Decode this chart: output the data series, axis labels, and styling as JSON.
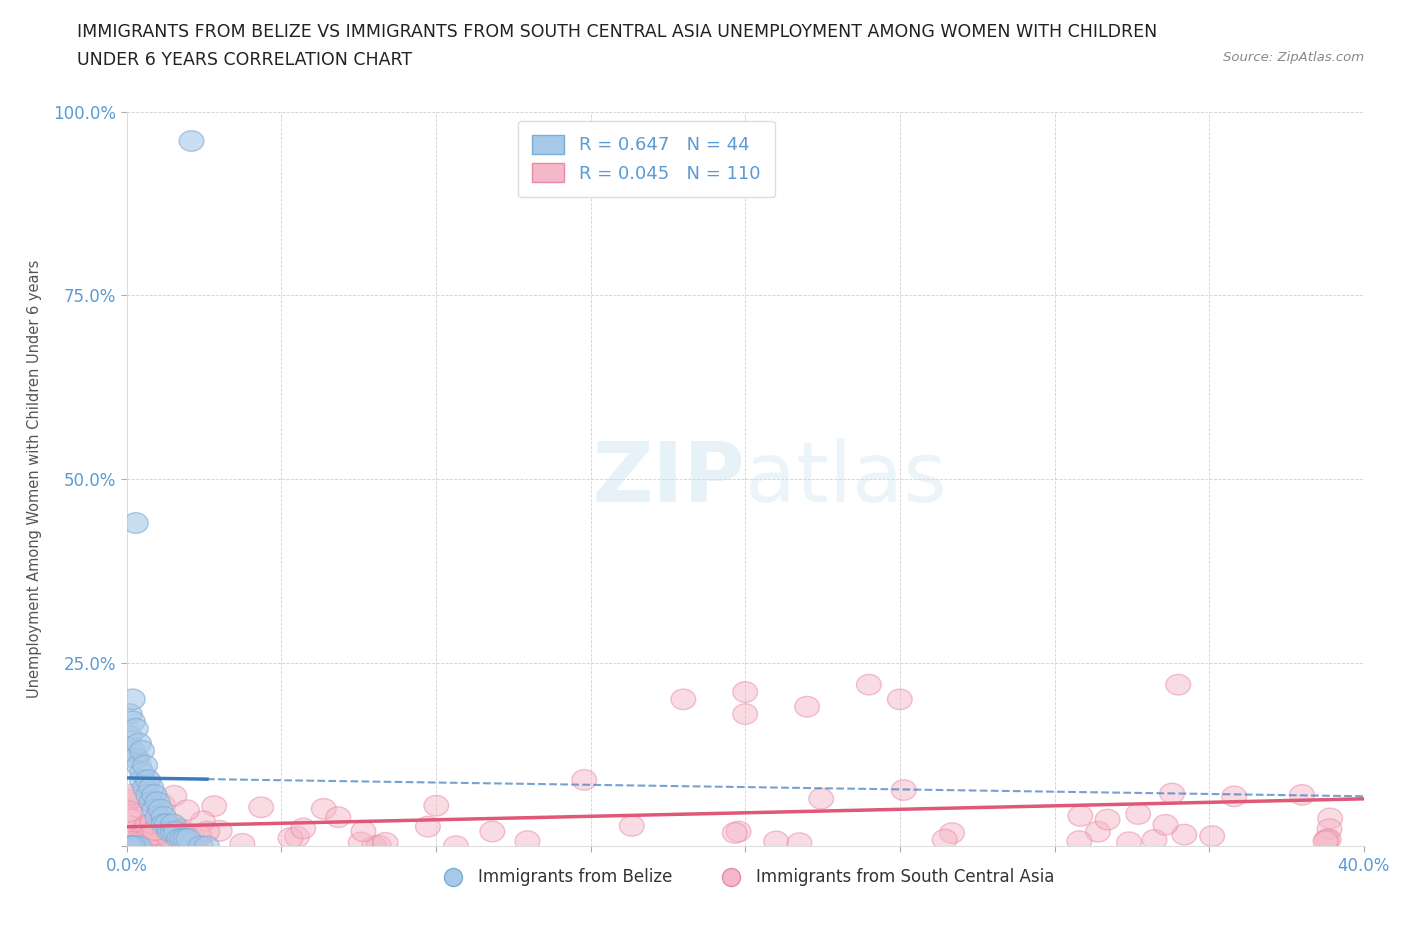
{
  "title_line1": "IMMIGRANTS FROM BELIZE VS IMMIGRANTS FROM SOUTH CENTRAL ASIA UNEMPLOYMENT AMONG WOMEN WITH CHILDREN",
  "title_line2": "UNDER 6 YEARS CORRELATION CHART",
  "source": "Source: ZipAtlas.com",
  "ylabel": "Unemployment Among Women with Children Under 6 years",
  "xlim": [
    0.0,
    0.4
  ],
  "ylim": [
    0.0,
    1.0
  ],
  "belize_R": 0.647,
  "belize_N": 44,
  "sca_R": 0.045,
  "sca_N": 110,
  "belize_color": "#a8c8e8",
  "belize_edge_color": "#7aadd4",
  "belize_line_color": "#3a7abf",
  "sca_color": "#f5b8c8",
  "sca_edge_color": "#e888a8",
  "sca_line_color": "#e05878",
  "legend_label_belize": "Immigrants from Belize",
  "legend_label_sca": "Immigrants from South Central Asia",
  "watermark_zip": "ZIP",
  "watermark_atlas": "atlas",
  "background_color": "#ffffff",
  "grid_color": "#cccccc",
  "title_color": "#222222",
  "axis_color": "#5b9bd5",
  "source_color": "#888888"
}
